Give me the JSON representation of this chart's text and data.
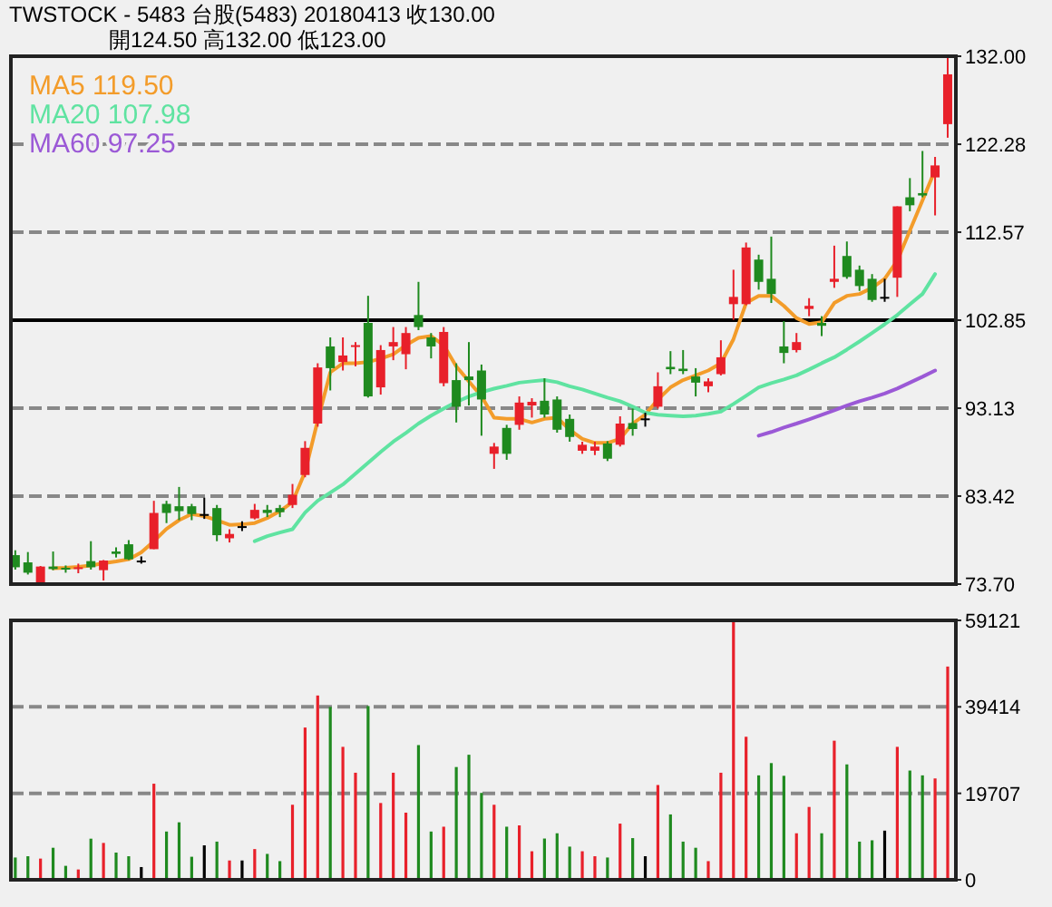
{
  "chart_data": [
    {
      "type": "candlestick",
      "title": "TWSTOCK - 5483 台股(5483) 20180413 收130.00",
      "subtitle": "開124.50 高132.00 低123.00",
      "categories": [
        null,
        null,
        null,
        null,
        null,
        null,
        null,
        null,
        null,
        null,
        null,
        null,
        null,
        null,
        null,
        null,
        null,
        null,
        null,
        null,
        null,
        null,
        null,
        null,
        null,
        null,
        null,
        null,
        null,
        null,
        null,
        null,
        null,
        null,
        null,
        null,
        null,
        null,
        null,
        null,
        null,
        null,
        null,
        null,
        null,
        null,
        null,
        null,
        null,
        null,
        null,
        null,
        null,
        null,
        null,
        null,
        null,
        null,
        null,
        null,
        null,
        null,
        null,
        null,
        null,
        null,
        null,
        null,
        null,
        null,
        null,
        null,
        null,
        null,
        null
      ],
      "ohlc": [
        [
          76.9,
          77.44,
          75.3,
          75.56
        ],
        [
          76.1,
          77.24,
          74.76,
          74.96
        ],
        [
          73.76,
          75.7,
          73.7,
          75.64
        ],
        [
          75.64,
          77.3,
          75.24,
          75.36
        ],
        [
          75.5,
          75.76,
          74.96,
          75.36
        ],
        [
          75.5,
          75.96,
          74.9,
          75.56
        ],
        [
          76.24,
          78.44,
          75.3,
          75.56
        ],
        [
          75.24,
          76.36,
          74.1,
          76.3
        ],
        [
          77.3,
          77.76,
          76.64,
          77.04
        ],
        [
          78.1,
          78.56,
          76.36,
          76.44
        ],
        [
          76.3,
          76.76,
          75.96,
          76.3
        ],
        [
          77.56,
          82.9,
          77.56,
          81.56
        ],
        [
          82.56,
          82.9,
          80.44,
          81.56
        ],
        [
          82.3,
          84.43,
          80.76,
          81.76
        ],
        [
          82.3,
          82.56,
          80.76,
          81.44
        ],
        [
          81.44,
          83.24,
          80.9,
          81.44
        ],
        [
          82.1,
          82.44,
          78.44,
          79.1
        ],
        [
          78.76,
          79.76,
          78.3,
          79.24
        ],
        [
          80.1,
          80.64,
          79.56,
          80.1
        ],
        [
          80.96,
          82.56,
          80.84,
          81.9
        ],
        [
          81.9,
          82.44,
          81.1,
          81.56
        ],
        [
          82.1,
          82.44,
          81.1,
          81.64
        ],
        [
          82.44,
          84.76,
          82.1,
          83.56
        ],
        [
          85.75,
          89.49,
          85.5,
          88.75
        ],
        [
          91.43,
          98.09,
          91.09,
          97.63
        ],
        [
          99.95,
          100.95,
          95.09,
          97.55
        ],
        [
          98.23,
          100.95,
          97.29,
          98.95
        ],
        [
          99.95,
          100.43,
          97.75,
          100.09
        ],
        [
          102.55,
          105.54,
          94.3,
          94.43
        ],
        [
          95.43,
          100.09,
          94.63,
          99.55
        ],
        [
          99.95,
          102.09,
          98.43,
          100.43
        ],
        [
          99.09,
          102.09,
          97.43,
          101.43
        ],
        [
          103.42,
          107.08,
          101.75,
          102.09
        ],
        [
          100.95,
          101.43,
          98.63,
          99.95
        ],
        [
          95.89,
          102.09,
          95.55,
          101.55
        ],
        [
          96.23,
          98.09,
          91.55,
          93.29
        ],
        [
          96.63,
          100.43,
          93.43,
          96.23
        ],
        [
          97.29,
          97.95,
          90.09,
          94.09
        ],
        [
          88.09,
          89.29,
          86.43,
          88.89
        ],
        [
          90.95,
          91.29,
          87.43,
          88.09
        ],
        [
          91.29,
          94.43,
          90.75,
          93.75
        ],
        [
          93.43,
          94.23,
          92.09,
          93.83
        ],
        [
          93.95,
          96.43,
          92.09,
          92.43
        ],
        [
          94.09,
          94.43,
          90.43,
          90.75
        ],
        [
          91.95,
          92.43,
          89.43,
          89.95
        ],
        [
          88.43,
          89.43,
          88.09,
          89.09
        ],
        [
          88.43,
          89.43,
          87.95,
          88.89
        ],
        [
          89.23,
          89.49,
          87.29,
          87.55
        ],
        [
          89.09,
          92.23,
          88.89,
          91.43
        ],
        [
          91.49,
          93.09,
          90.09,
          90.83
        ],
        [
          92.0,
          92.63,
          91.09,
          92.0
        ],
        [
          93.29,
          97.09,
          93.09,
          95.55
        ],
        [
          97.69,
          99.43,
          96.89,
          97.43
        ],
        [
          97.49,
          99.55,
          96.89,
          97.23
        ],
        [
          96.63,
          97.55,
          94.43,
          95.95
        ],
        [
          95.55,
          96.43,
          94.89,
          96.09
        ],
        [
          96.89,
          100.63,
          96.75,
          98.75
        ],
        [
          104.62,
          108.42,
          102.89,
          105.42
        ],
        [
          104.62,
          111.42,
          104.5,
          110.88
        ],
        [
          109.54,
          110.08,
          106.22,
          107.08
        ],
        [
          107.42,
          112.08,
          104.75,
          105.74
        ],
        [
          99.95,
          102.75,
          98.09,
          99.23
        ],
        [
          99.55,
          101.43,
          99.29,
          100.43
        ],
        [
          104.09,
          105.28,
          103.29,
          104.43
        ],
        [
          102.55,
          103.29,
          101.09,
          102.23
        ],
        [
          107.08,
          111.08,
          106.42,
          107.42
        ],
        [
          109.94,
          111.54,
          107.42,
          107.62
        ],
        [
          108.42,
          108.88,
          106.08,
          106.62
        ],
        [
          107.42,
          107.94,
          104.88,
          105.08
        ],
        [
          105.42,
          107.42,
          104.88,
          105.42
        ],
        [
          107.54,
          115.42,
          105.42,
          115.42
        ],
        [
          116.42,
          118.54,
          114.88,
          115.54
        ],
        [
          116.88,
          121.54,
          116.42,
          116.62
        ],
        [
          118.62,
          120.88,
          114.42,
          119.94
        ],
        [
          124.5,
          132.0,
          123.0,
          130.0
        ]
      ],
      "colors": [
        "#1f8a1f",
        "#1f8a1f",
        "#e8202a",
        "#1f8a1f",
        "#1f8a1f",
        "#e8202a",
        "#1f8a1f",
        "#e8202a",
        "#1f8a1f",
        "#1f8a1f",
        "#000000",
        "#e8202a",
        "#1f8a1f",
        "#1f8a1f",
        "#1f8a1f",
        "#000000",
        "#1f8a1f",
        "#e8202a",
        "#000000",
        "#e8202a",
        "#1f8a1f",
        "#1f8a1f",
        "#e8202a",
        "#e8202a",
        "#e8202a",
        "#1f8a1f",
        "#e8202a",
        "#e8202a",
        "#1f8a1f",
        "#e8202a",
        "#e8202a",
        "#e8202a",
        "#1f8a1f",
        "#1f8a1f",
        "#e8202a",
        "#1f8a1f",
        "#1f8a1f",
        "#1f8a1f",
        "#e8202a",
        "#1f8a1f",
        "#e8202a",
        "#e8202a",
        "#1f8a1f",
        "#1f8a1f",
        "#1f8a1f",
        "#e8202a",
        "#e8202a",
        "#1f8a1f",
        "#e8202a",
        "#1f8a1f",
        "#000000",
        "#e8202a",
        "#1f8a1f",
        "#1f8a1f",
        "#1f8a1f",
        "#e8202a",
        "#e8202a",
        "#e8202a",
        "#e8202a",
        "#1f8a1f",
        "#1f8a1f",
        "#1f8a1f",
        "#e8202a",
        "#e8202a",
        "#1f8a1f",
        "#e8202a",
        "#1f8a1f",
        "#1f8a1f",
        "#1f8a1f",
        "#000000",
        "#e8202a",
        "#1f8a1f",
        "#1f8a1f",
        "#e8202a",
        "#e8202a"
      ],
      "series": [
        {
          "type": "line",
          "name": "MA5 119.50",
          "color": "#f39c2a",
          "values": [
            null,
            null,
            null,
            75.44,
            75.5,
            75.6,
            75.76,
            76.0,
            76.2,
            76.44,
            77.2,
            78.44,
            79.8,
            80.76,
            81.44,
            81.2,
            80.76,
            80.24,
            80.3,
            80.44,
            81.0,
            81.76,
            82.76,
            86.09,
            91.75,
            97.09,
            98.09,
            98.1,
            98.23,
            98.6,
            99.09,
            100.09,
            100.89,
            101.09,
            100.09,
            97.75,
            96.09,
            94.43,
            92.09,
            91.95,
            91.95,
            91.55,
            91.95,
            92.09,
            90.75,
            89.75,
            89.29,
            89.29,
            89.75,
            91.43,
            92.43,
            94.09,
            95.43,
            96.23,
            96.75,
            97.29,
            98.09,
            100.75,
            104.75,
            105.54,
            105.54,
            104.43,
            103.09,
            102.43,
            102.63,
            104.75,
            105.54,
            105.74,
            106.42,
            107.42,
            109.42,
            112.74,
            116.08,
            119.42,
            null
          ]
        },
        {
          "type": "line",
          "name": "MA20 107.98",
          "color": "#5fe3a1",
          "values": [
            null,
            null,
            null,
            null,
            null,
            null,
            null,
            null,
            null,
            null,
            null,
            null,
            null,
            null,
            null,
            null,
            null,
            null,
            null,
            78.44,
            79.0,
            79.4,
            79.76,
            81.6,
            82.9,
            83.8,
            84.7,
            85.9,
            87.09,
            88.3,
            89.43,
            90.4,
            91.43,
            92.3,
            93.09,
            93.8,
            94.43,
            94.9,
            95.29,
            95.6,
            95.95,
            96.1,
            96.23,
            96.0,
            95.55,
            95.2,
            94.75,
            94.3,
            93.9,
            93.3,
            92.63,
            92.4,
            92.3,
            92.23,
            92.3,
            92.5,
            92.75,
            93.6,
            94.5,
            95.43,
            95.9,
            96.3,
            96.75,
            97.4,
            98.1,
            98.75,
            99.6,
            100.5,
            101.43,
            102.4,
            103.42,
            104.6,
            105.74,
            107.94,
            null
          ]
        },
        {
          "type": "line",
          "name": "MA60 97.25",
          "color": "#9b59d6",
          "values": [
            null,
            null,
            null,
            null,
            null,
            null,
            null,
            null,
            null,
            null,
            null,
            null,
            null,
            null,
            null,
            null,
            null,
            null,
            null,
            null,
            null,
            null,
            null,
            null,
            null,
            null,
            null,
            null,
            null,
            null,
            null,
            null,
            null,
            null,
            null,
            null,
            null,
            null,
            null,
            null,
            null,
            null,
            null,
            null,
            null,
            null,
            null,
            null,
            null,
            null,
            null,
            null,
            null,
            null,
            null,
            null,
            null,
            null,
            null,
            90.09,
            90.5,
            91.0,
            91.43,
            91.9,
            92.4,
            92.9,
            93.43,
            93.9,
            94.3,
            94.75,
            95.3,
            95.95,
            96.6,
            97.29,
            null
          ]
        }
      ],
      "ylim": [
        73.7,
        132.0
      ],
      "yticks": [
        {
          "value": 73.7,
          "label": "73.70"
        },
        {
          "value": 83.42,
          "label": "83.42"
        },
        {
          "value": 93.13,
          "label": "93.13"
        },
        {
          "value": 102.85,
          "label": "102.85"
        },
        {
          "value": 112.57,
          "label": "112.57"
        },
        {
          "value": 122.28,
          "label": "122.28"
        },
        {
          "value": 132.0,
          "label": "132.00"
        }
      ],
      "grid": "y",
      "ref_lines": [
        {
          "axis": "y",
          "value": 102.85,
          "color": "#000000"
        }
      ],
      "legend": "top left",
      "tick_labels": "y"
    },
    {
      "type": "bar",
      "categories": [
        null,
        null,
        null,
        null,
        null,
        null,
        null,
        null,
        null,
        null,
        null,
        null,
        null,
        null,
        null,
        null,
        null,
        null,
        null,
        null,
        null,
        null,
        null,
        null,
        null,
        null,
        null,
        null,
        null,
        null,
        null,
        null,
        null,
        null,
        null,
        null,
        null,
        null,
        null,
        null,
        null,
        null,
        null,
        null,
        null,
        null,
        null,
        null,
        null,
        null,
        null,
        null,
        null,
        null,
        null,
        null,
        null,
        null,
        null,
        null,
        null,
        null,
        null,
        null,
        null,
        null,
        null,
        null,
        null,
        null,
        null,
        null,
        null,
        null,
        null
      ],
      "values": [
        5080,
        5370,
        4830,
        7300,
        3180,
        2350,
        9370,
        8400,
        6200,
        5370,
        2900,
        21900,
        11000,
        13100,
        5250,
        7850,
        8700,
        4400,
        4400,
        7000,
        5900,
        4250,
        17100,
        34700,
        42000,
        39400,
        30300,
        24400,
        39600,
        17500,
        24400,
        15300,
        30700,
        11000,
        12100,
        25700,
        28500,
        19800,
        17100,
        12100,
        12400,
        6500,
        9400,
        10600,
        7560,
        6500,
        5370,
        5080,
        12800,
        9500,
        5370,
        21600,
        14900,
        8700,
        7300,
        4250,
        24400,
        59121,
        32600,
        23800,
        26600,
        23700,
        10600,
        16600,
        10600,
        31700,
        26300,
        8700,
        9000,
        11200,
        30300,
        24900,
        23800,
        23100,
        48600
      ],
      "colors": [
        "#1f8a1f",
        "#1f8a1f",
        "#e8202a",
        "#1f8a1f",
        "#1f8a1f",
        "#e8202a",
        "#1f8a1f",
        "#e8202a",
        "#1f8a1f",
        "#1f8a1f",
        "#000000",
        "#e8202a",
        "#1f8a1f",
        "#1f8a1f",
        "#1f8a1f",
        "#000000",
        "#1f8a1f",
        "#e8202a",
        "#000000",
        "#e8202a",
        "#1f8a1f",
        "#1f8a1f",
        "#e8202a",
        "#e8202a",
        "#e8202a",
        "#1f8a1f",
        "#e8202a",
        "#e8202a",
        "#1f8a1f",
        "#e8202a",
        "#e8202a",
        "#e8202a",
        "#1f8a1f",
        "#1f8a1f",
        "#e8202a",
        "#1f8a1f",
        "#1f8a1f",
        "#1f8a1f",
        "#e8202a",
        "#1f8a1f",
        "#e8202a",
        "#e8202a",
        "#1f8a1f",
        "#1f8a1f",
        "#1f8a1f",
        "#e8202a",
        "#e8202a",
        "#1f8a1f",
        "#e8202a",
        "#1f8a1f",
        "#000000",
        "#e8202a",
        "#1f8a1f",
        "#1f8a1f",
        "#1f8a1f",
        "#e8202a",
        "#e8202a",
        "#e8202a",
        "#e8202a",
        "#1f8a1f",
        "#1f8a1f",
        "#1f8a1f",
        "#e8202a",
        "#e8202a",
        "#1f8a1f",
        "#e8202a",
        "#1f8a1f",
        "#1f8a1f",
        "#1f8a1f",
        "#000000",
        "#e8202a",
        "#1f8a1f",
        "#1f8a1f",
        "#e8202a",
        "#e8202a"
      ],
      "ylim": [
        0,
        59121
      ],
      "yticks": [
        0,
        19707,
        39414,
        59121
      ],
      "grid": "y",
      "tick_labels": "y"
    }
  ]
}
